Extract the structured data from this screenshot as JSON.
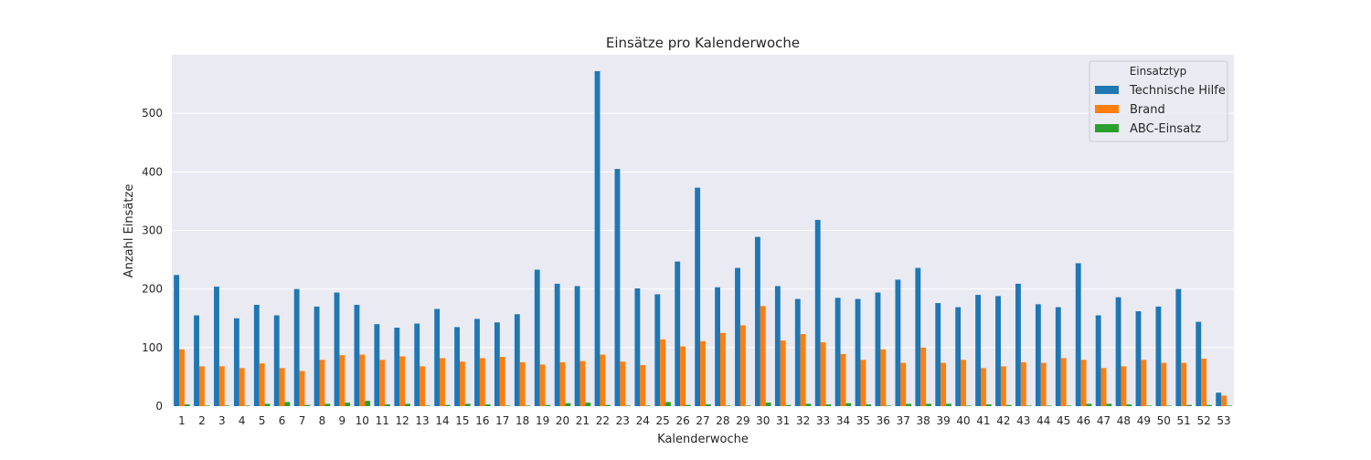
{
  "chart_data": {
    "type": "bar",
    "title": "Einsätze pro Kalenderwoche",
    "xlabel": "Kalenderwoche",
    "ylabel": "Anzahl Einsätze",
    "ylim": [
      0,
      600
    ],
    "yticks": [
      0,
      100,
      200,
      300,
      400,
      500
    ],
    "grid": true,
    "legend": {
      "title": "Einsatztyp",
      "placement": "top-right"
    },
    "categories": [
      "1",
      "2",
      "3",
      "4",
      "5",
      "6",
      "7",
      "8",
      "9",
      "10",
      "11",
      "12",
      "13",
      "14",
      "15",
      "16",
      "17",
      "18",
      "19",
      "20",
      "21",
      "22",
      "23",
      "24",
      "25",
      "26",
      "27",
      "28",
      "29",
      "30",
      "31",
      "32",
      "33",
      "34",
      "35",
      "36",
      "37",
      "38",
      "39",
      "40",
      "41",
      "42",
      "43",
      "44",
      "45",
      "46",
      "47",
      "48",
      "49",
      "50",
      "51",
      "52",
      "53"
    ],
    "series": [
      {
        "name": "Technische Hilfe",
        "color": "#1f77b4",
        "values": [
          224,
          155,
          204,
          150,
          173,
          155,
          200,
          170,
          194,
          173,
          140,
          134,
          141,
          166,
          135,
          149,
          143,
          157,
          233,
          209,
          205,
          572,
          405,
          201,
          191,
          247,
          373,
          203,
          236,
          289,
          205,
          183,
          318,
          185,
          183,
          194,
          216,
          236,
          176,
          169,
          190,
          188,
          209,
          174,
          169,
          244,
          155,
          186,
          162,
          170,
          200,
          144,
          23
        ]
      },
      {
        "name": "Brand",
        "color": "#ff7f0e",
        "values": [
          97,
          68,
          68,
          65,
          73,
          65,
          60,
          79,
          87,
          88,
          79,
          85,
          68,
          82,
          76,
          82,
          84,
          75,
          71,
          75,
          77,
          88,
          76,
          70,
          114,
          102,
          111,
          125,
          138,
          171,
          112,
          123,
          109,
          89,
          79,
          97,
          74,
          100,
          74,
          79,
          65,
          68,
          75,
          74,
          82,
          79,
          65,
          68,
          79,
          74,
          74,
          81,
          18
        ]
      },
      {
        "name": "ABC-Einsatz",
        "color": "#2ca02c",
        "values": [
          3,
          1,
          1,
          1,
          4,
          7,
          2,
          4,
          6,
          9,
          3,
          4,
          1,
          2,
          4,
          3,
          1,
          1,
          2,
          5,
          6,
          2,
          1,
          1,
          7,
          2,
          3,
          1,
          1,
          6,
          2,
          4,
          3,
          5,
          3,
          1,
          4,
          4,
          4,
          1,
          3,
          2,
          1,
          1,
          1,
          4,
          4,
          3,
          1,
          1,
          2,
          2,
          1
        ]
      }
    ]
  }
}
